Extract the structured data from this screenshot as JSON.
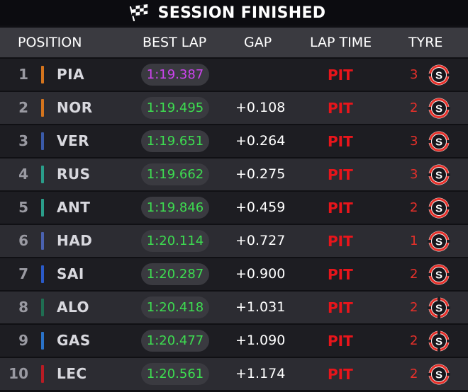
{
  "title": "SESSION FINISHED",
  "headers": {
    "position": "POSITION",
    "best_lap": "BEST LAP",
    "gap": "GAP",
    "lap_time": "LAP TIME",
    "tyre": "TYRE"
  },
  "colors": {
    "purple_lap": "#cc44ee",
    "green_lap": "#3ddc50",
    "pit": "#e8151b",
    "tyre_ring": "#e8302a"
  },
  "rows": [
    {
      "pos": "1",
      "driver": "PIA",
      "team_color": "#d4741d",
      "best_lap": "1:19.387",
      "best_type": "purple",
      "gap": "",
      "lap_time": "PIT",
      "tyre_laps": "3",
      "tyre": "S",
      "tyre_icon": "soft-tyre-icon"
    },
    {
      "pos": "2",
      "driver": "NOR",
      "team_color": "#d4741d",
      "best_lap": "1:19.495",
      "best_type": "green",
      "gap": "+0.108",
      "lap_time": "PIT",
      "tyre_laps": "2",
      "tyre": "S",
      "tyre_icon": "soft-tyre-icon"
    },
    {
      "pos": "3",
      "driver": "VER",
      "team_color": "#3a5aa8",
      "best_lap": "1:19.651",
      "best_type": "green",
      "gap": "+0.264",
      "lap_time": "PIT",
      "tyre_laps": "3",
      "tyre": "S",
      "tyre_icon": "soft-tyre-icon"
    },
    {
      "pos": "4",
      "driver": "RUS",
      "team_color": "#2a9d8a",
      "best_lap": "1:19.662",
      "best_type": "green",
      "gap": "+0.275",
      "lap_time": "PIT",
      "tyre_laps": "3",
      "tyre": "S",
      "tyre_icon": "soft-tyre-icon"
    },
    {
      "pos": "5",
      "driver": "ANT",
      "team_color": "#2a9d8a",
      "best_lap": "1:19.846",
      "best_type": "green",
      "gap": "+0.459",
      "lap_time": "PIT",
      "tyre_laps": "2",
      "tyre": "S",
      "tyre_icon": "soft-tyre-icon"
    },
    {
      "pos": "6",
      "driver": "HAD",
      "team_color": "#4a62b0",
      "best_lap": "1:20.114",
      "best_type": "green",
      "gap": "+0.727",
      "lap_time": "PIT",
      "tyre_laps": "1",
      "tyre": "S",
      "tyre_icon": "soft-tyre-icon"
    },
    {
      "pos": "7",
      "driver": "SAI",
      "team_color": "#2a5ac8",
      "best_lap": "1:20.287",
      "best_type": "green",
      "gap": "+0.900",
      "lap_time": "PIT",
      "tyre_laps": "2",
      "tyre": "S",
      "tyre_icon": "soft-tyre-icon"
    },
    {
      "pos": "8",
      "driver": "ALO",
      "team_color": "#1f6e52",
      "best_lap": "1:20.418",
      "best_type": "green",
      "gap": "+1.031",
      "lap_time": "PIT",
      "tyre_laps": "2",
      "tyre": "S",
      "tyre_icon": "soft-tyre-used-icon"
    },
    {
      "pos": "9",
      "driver": "GAS",
      "team_color": "#2a72c8",
      "best_lap": "1:20.477",
      "best_type": "green",
      "gap": "+1.090",
      "lap_time": "PIT",
      "tyre_laps": "2",
      "tyre": "S",
      "tyre_icon": "soft-tyre-used-icon"
    },
    {
      "pos": "10",
      "driver": "LEC",
      "team_color": "#b81c24",
      "best_lap": "1:20.561",
      "best_type": "green",
      "gap": "+1.174",
      "lap_time": "PIT",
      "tyre_laps": "2",
      "tyre": "S",
      "tyre_icon": "soft-tyre-icon"
    }
  ]
}
